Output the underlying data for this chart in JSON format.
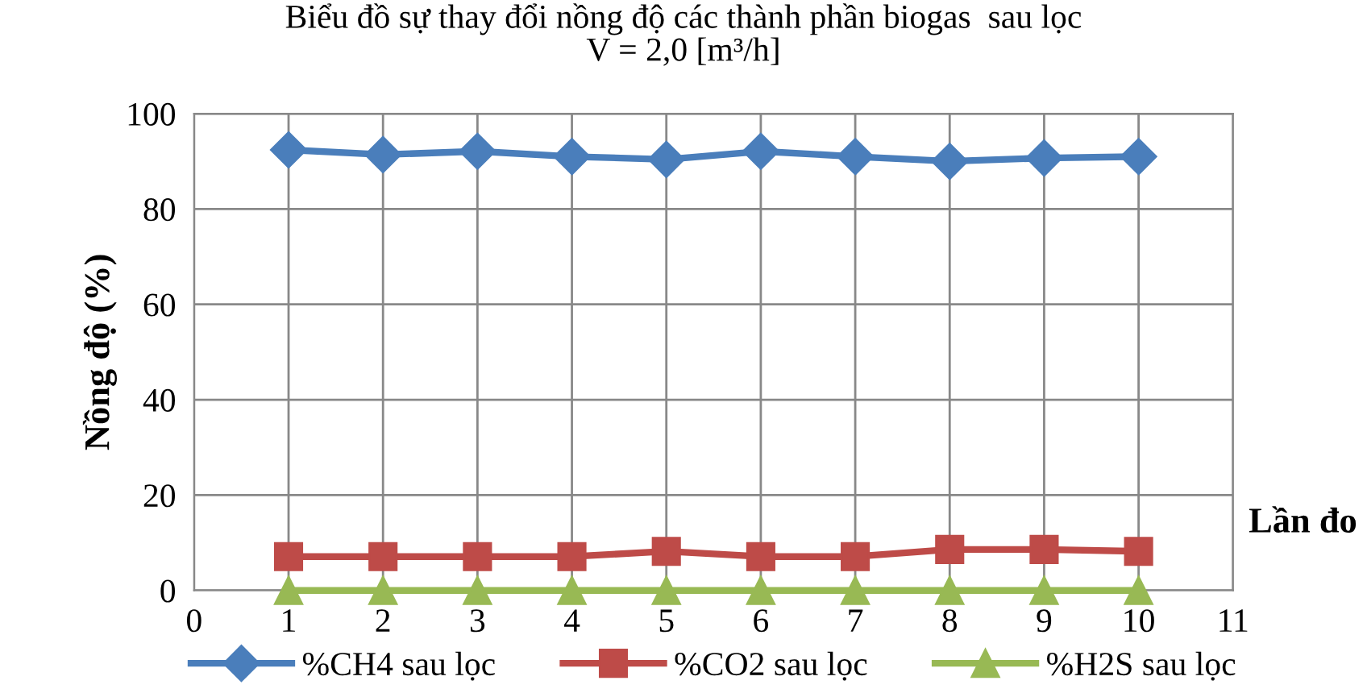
{
  "chart_data": {
    "type": "line",
    "title": "Biểu đồ sự thay đổi nồng độ các thành phần biogas  sau lọc\nV = 2,0 [m³/h]",
    "xlabel": "Lần đo",
    "ylabel": "Nồng độ (%)",
    "x": [
      1,
      2,
      3,
      4,
      5,
      6,
      7,
      8,
      9,
      10
    ],
    "series": [
      {
        "name": "%CH4 sau lọc",
        "color": "#4a7ebb",
        "marker": "diamond",
        "values": [
          92.4,
          91.4,
          92.1,
          91.0,
          90.4,
          92.1,
          91.0,
          90.0,
          90.7,
          91.0
        ]
      },
      {
        "name": "%CO2 sau lọc",
        "color": "#be4b48",
        "marker": "square",
        "values": [
          7.1,
          7.1,
          7.1,
          7.1,
          8.2,
          7.1,
          7.1,
          8.6,
          8.6,
          8.2
        ]
      },
      {
        "name": "%H2S sau lọc",
        "color": "#98b954",
        "marker": "triangle",
        "values": [
          0,
          0,
          0,
          0,
          0,
          0,
          0,
          0,
          0,
          0
        ]
      }
    ],
    "xlim": [
      0,
      11
    ],
    "xticks": [
      0,
      1,
      2,
      3,
      4,
      5,
      6,
      7,
      8,
      9,
      10,
      11
    ],
    "ylim": [
      0,
      100
    ],
    "yticks": [
      0,
      20,
      40,
      60,
      80,
      100
    ],
    "grid": true,
    "legend": "bottom",
    "line_style": "solid"
  }
}
